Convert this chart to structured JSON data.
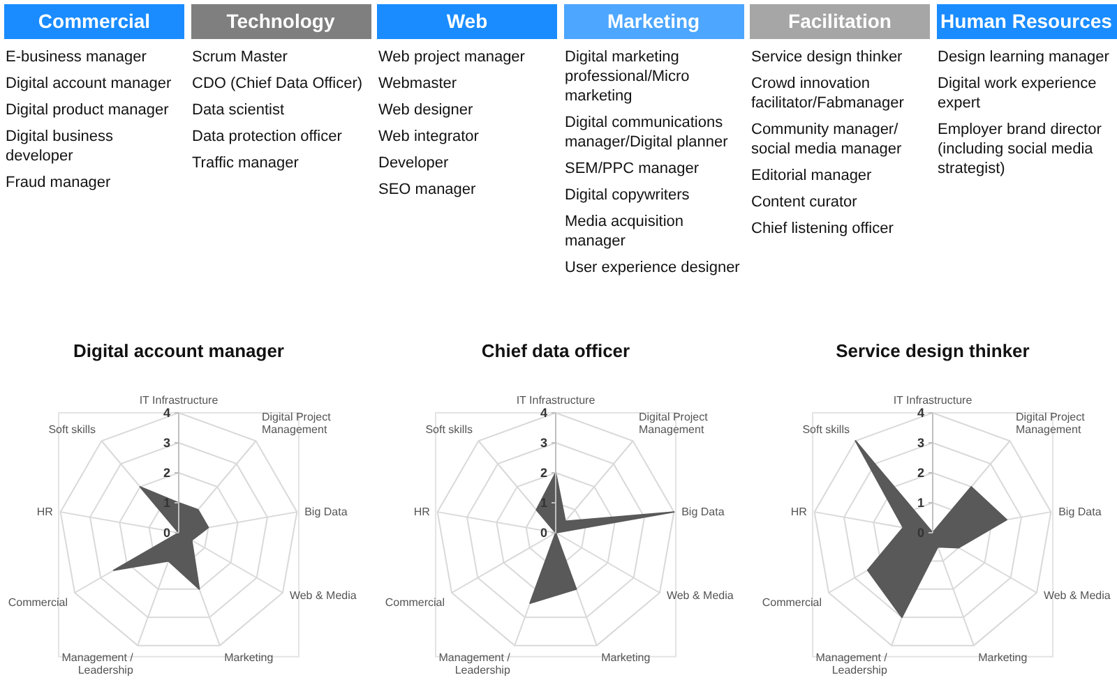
{
  "chart_data": [
    {
      "type": "other",
      "categories": [
        "Commercial",
        "Technology",
        "Web",
        "Marketing",
        "Facilitation",
        "Human Resources"
      ],
      "colors": [
        "#1a8cff",
        "#7f7f7f",
        "#1a8cff",
        "#4da6ff",
        "#a6a6a6",
        "#1a8cff"
      ],
      "cell_labels": [
        [
          "E-business manager",
          "Digital account manager",
          "Digital product manager",
          "Digital business developer",
          "Fraud manager"
        ],
        [
          "Scrum Master",
          "CDO (Chief Data Officer)",
          "Data scientist",
          "Data protection officer",
          "Traffic manager"
        ],
        [
          "Web project manager",
          "Webmaster",
          "Web designer",
          "Web integrator",
          "Developer",
          "SEO manager"
        ],
        [
          "Digital marketing professional/Micro marketing",
          "Digital communications manager/Digital planner",
          "SEM/PPC manager",
          "Digital copywriters",
          "Media acquisition manager",
          "User experience designer"
        ],
        [
          "Service design thinker",
          "Crowd innovation facilitator/Fabmanager",
          "Community manager/ social media manager",
          "Editorial manager",
          "Content curator",
          "Chief listening officer"
        ],
        [
          "Design learning manager",
          "Digital work experience expert",
          "Employer brand director (including social media strategist)"
        ]
      ]
    },
    {
      "type": "radar",
      "title": "Digital account manager",
      "categories": [
        "IT Infrastructure",
        "Digital Project Management",
        "Big Data",
        "Web & Media",
        "Marketing",
        "Management / Leadership",
        "Commercial",
        "HR",
        "Soft skills"
      ],
      "ylim": [
        0,
        4
      ],
      "yticks": [
        0,
        1,
        2,
        3,
        4
      ],
      "grid": true,
      "series": [
        {
          "color": "#595959",
          "values": [
            1,
            1,
            1,
            0.5,
            2,
            1,
            2.5,
            0,
            2
          ]
        }
      ]
    },
    {
      "type": "radar",
      "title": "Chief data officer",
      "categories": [
        "IT Infrastructure",
        "Digital Project Management",
        "Big Data",
        "Web & Media",
        "Marketing",
        "Management / Leadership",
        "Commercial",
        "HR",
        "Soft skills"
      ],
      "ylim": [
        0,
        4
      ],
      "yticks": [
        0,
        1,
        2,
        3,
        4
      ],
      "grid": true,
      "series": [
        {
          "color": "#595959",
          "values": [
            2,
            0.5,
            4,
            0,
            2,
            2.5,
            0,
            0,
            1
          ]
        }
      ]
    },
    {
      "type": "radar",
      "title": "Service design thinker",
      "categories": [
        "IT Infrastructure",
        "Digital Project Management",
        "Big Data",
        "Web & Media",
        "Marketing",
        "Management / Leadership",
        "Commercial",
        "HR",
        "Soft skills"
      ],
      "ylim": [
        0,
        4
      ],
      "yticks": [
        0,
        1,
        2,
        3,
        4
      ],
      "grid": true,
      "series": [
        {
          "color": "#595959",
          "values": [
            0,
            2,
            2.5,
            1,
            0.5,
            3,
            2.5,
            1,
            4
          ]
        }
      ]
    }
  ]
}
